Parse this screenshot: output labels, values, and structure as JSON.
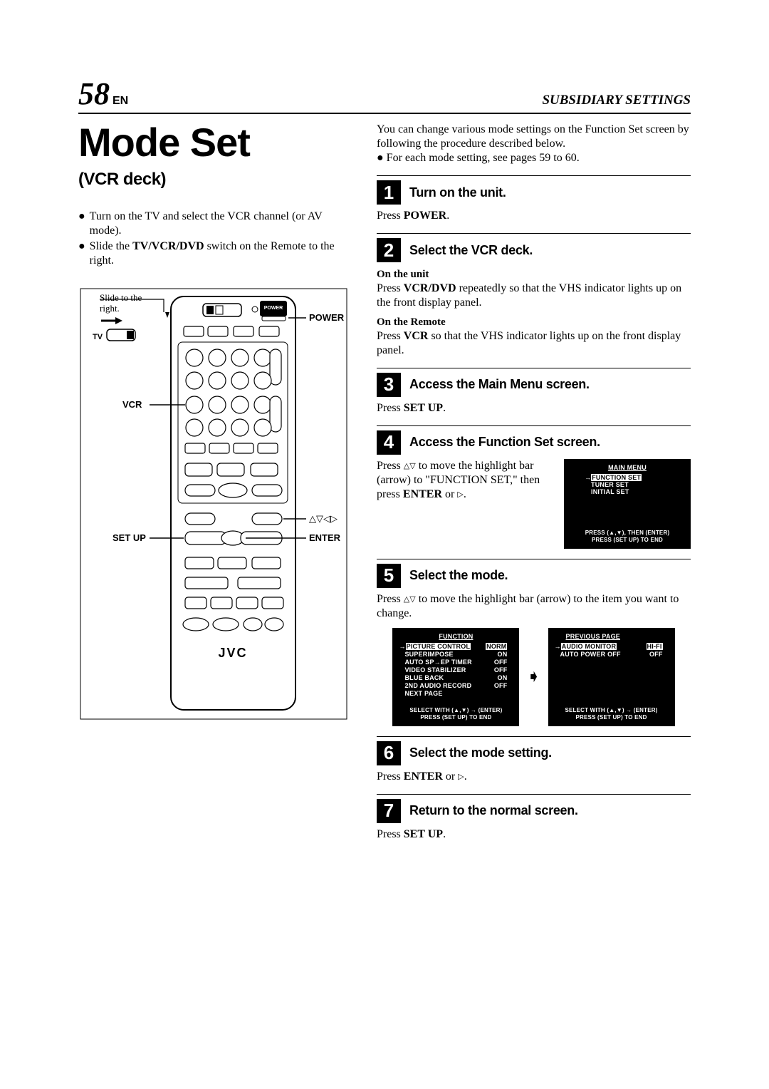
{
  "header": {
    "page_number": "58",
    "page_lang": "EN",
    "section_title": "SUBSIDIARY SETTINGS"
  },
  "main_title": "Mode Set",
  "subtitle": "(VCR deck)",
  "left_bullets": [
    "Turn on the TV and select the VCR channel (or AV mode).",
    "Slide the TV/VCR/DVD switch on the Remote to the right."
  ],
  "remote": {
    "slide_label": "Slide to the right.",
    "tv_label": "TV",
    "power_label": "POWER",
    "vcr_label": "VCR",
    "enter_label": "ENTER",
    "setup_label": "SET UP",
    "arrows_label": "△▽◁▷",
    "brand": "JVC",
    "power_btn_caption": "POWER"
  },
  "intro_text_1": "You can change various mode settings on the Function Set screen by following the procedure described below.",
  "intro_text_2": "For each mode setting, see pages 59 to 60.",
  "steps": [
    {
      "num": "1",
      "title": "Turn on the unit.",
      "body_html": "Press <b>POWER</b>."
    },
    {
      "num": "2",
      "title": "Select the VCR deck.",
      "on_unit_label": "On the unit",
      "on_unit_text": "Press <b>VCR/DVD</b> repeatedly so that the VHS indicator lights up on the front display panel.",
      "on_remote_label": "On the Remote",
      "on_remote_text": "Press <b>VCR</b> so that the VHS indicator lights up on the front display panel."
    },
    {
      "num": "3",
      "title": "Access the Main Menu screen.",
      "body_html": "Press <b>SET UP</b>."
    },
    {
      "num": "4",
      "title": "Access the Function Set screen.",
      "body_html": "Press △▽ to move the highlight bar (arrow) to \"FUNCTION SET,\" then press <b>ENTER</b> or ▷.",
      "osd": {
        "title": "MAIN MENU",
        "items": [
          "FUNCTION SET",
          "TUNER SET",
          "INITIAL SET"
        ],
        "selected_index": 0,
        "footer1": "PRESS (▲,▼), THEN (ENTER)",
        "footer2": "PRESS (SET UP) TO END"
      }
    },
    {
      "num": "5",
      "title": "Select the mode.",
      "body_html": "Press △▽ to move the highlight bar (arrow) to the item you want to change.",
      "osd_left": {
        "title": "FUNCTION",
        "rows": [
          [
            "PICTURE CONTROL",
            "NORM"
          ],
          [
            "SUPERIMPOSE",
            "ON"
          ],
          [
            "AUTO SP→EP TIMER",
            "OFF"
          ],
          [
            "VIDEO STABILIZER",
            "OFF"
          ],
          [
            "BLUE BACK",
            "ON"
          ],
          [
            "2ND AUDIO RECORD",
            "OFF"
          ],
          [
            "NEXT PAGE",
            ""
          ]
        ],
        "selected_index": 0,
        "footer1": "SELECT WITH (▲,▼) → (ENTER)",
        "footer2": "PRESS (SET UP) TO END"
      },
      "osd_right": {
        "title": "PREVIOUS PAGE",
        "rows": [
          [
            "AUDIO MONITOR",
            "HI-FI"
          ],
          [
            "AUTO POWER OFF",
            "OFF"
          ]
        ],
        "selected_index": 0,
        "footer1": "SELECT WITH (▲,▼) → (ENTER)",
        "footer2": "PRESS (SET UP) TO END"
      }
    },
    {
      "num": "6",
      "title": "Select the mode setting.",
      "body_html": "Press <b>ENTER</b> or ▷."
    },
    {
      "num": "7",
      "title": "Return to the normal screen.",
      "body_html": "Press <b>SET UP</b>."
    }
  ]
}
